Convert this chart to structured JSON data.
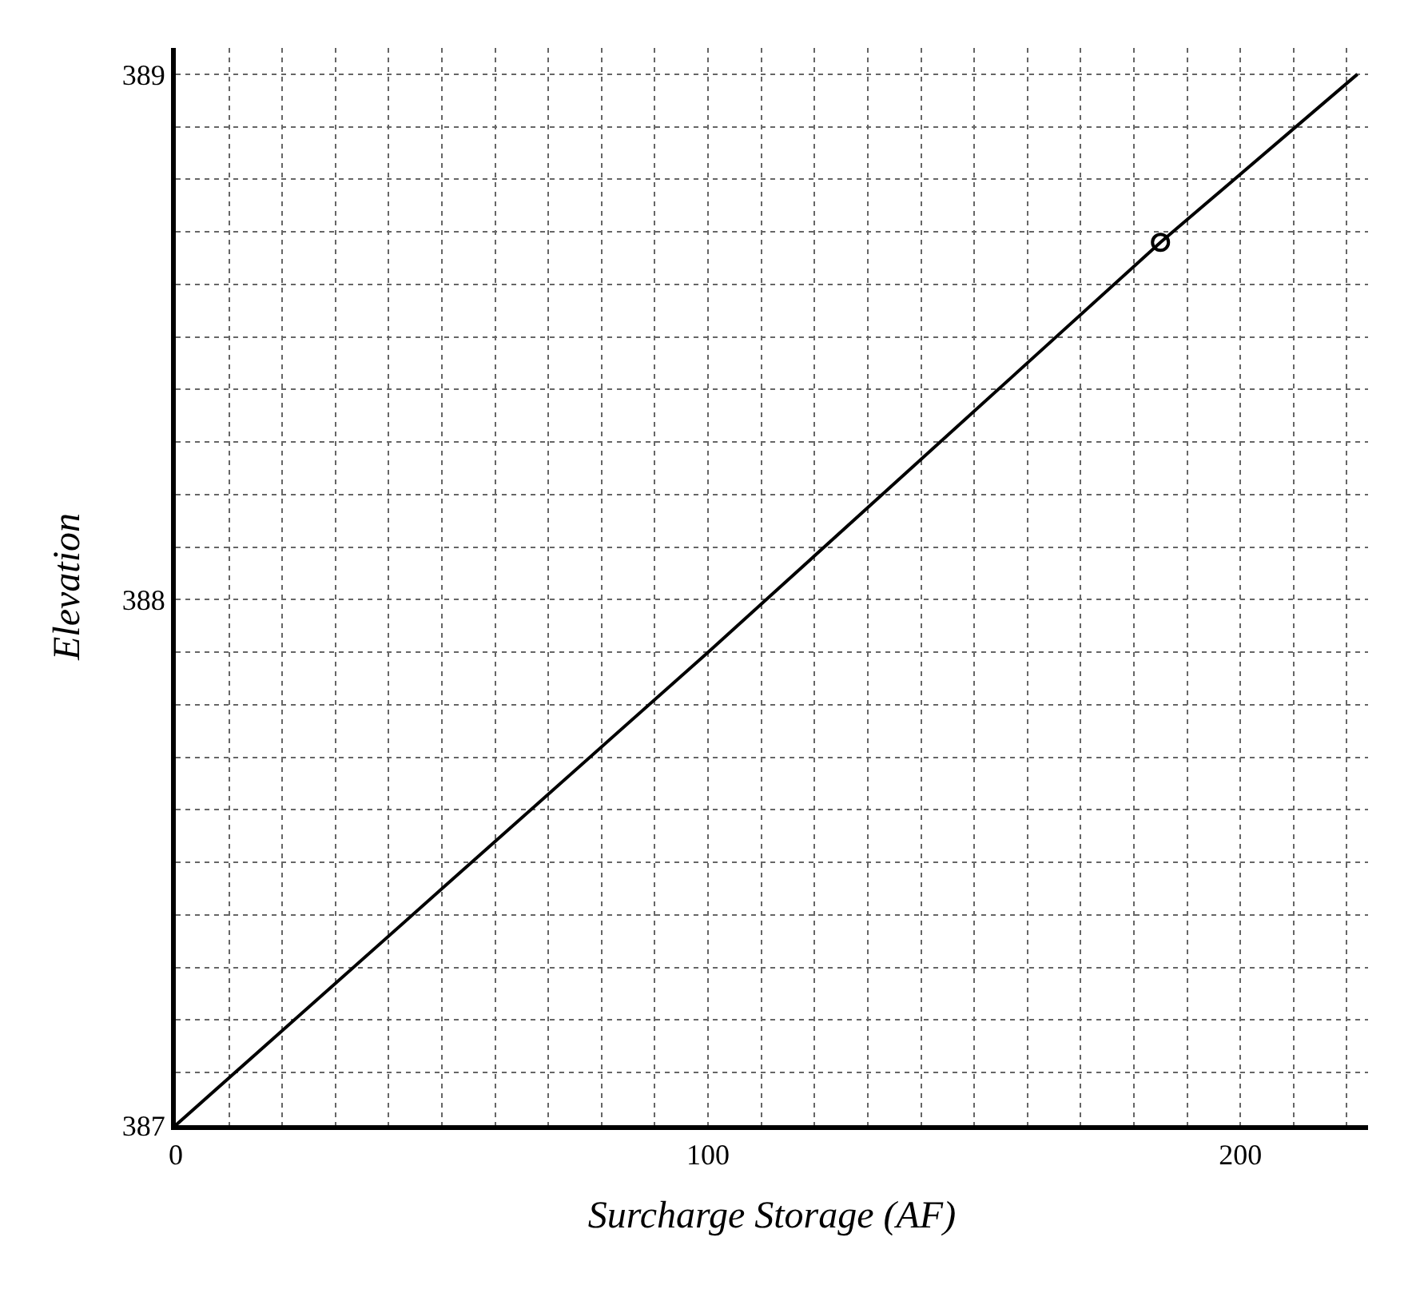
{
  "chart_data": {
    "type": "line",
    "xlabel": "Surcharge Storage (AF)",
    "ylabel": "Elevation",
    "series": [
      {
        "color": "#000000",
        "x": [
          0,
          50,
          100,
          185,
          222
        ],
        "values": [
          387,
          387.45,
          387.9,
          388.68,
          389
        ]
      },
      {
        "type": "scatter",
        "marker": "circle",
        "color": "#000000",
        "x": [
          185
        ],
        "values": [
          388.68
        ]
      }
    ],
    "xlim": [
      0,
      224
    ],
    "ylim": [
      387,
      389.05
    ],
    "xticks": [
      0,
      {
        "value": 10,
        "label": null
      },
      {
        "value": 20,
        "label": null
      },
      {
        "value": 30,
        "label": null
      },
      {
        "value": 40,
        "label": null
      },
      {
        "value": 50,
        "label": null
      },
      {
        "value": 60,
        "label": null
      },
      {
        "value": 70,
        "label": null
      },
      {
        "value": 80,
        "label": null
      },
      {
        "value": 90,
        "label": null
      },
      100,
      {
        "value": 110,
        "label": null
      },
      {
        "value": 120,
        "label": null
      },
      {
        "value": 130,
        "label": null
      },
      {
        "value": 140,
        "label": null
      },
      {
        "value": 150,
        "label": null
      },
      {
        "value": 160,
        "label": null
      },
      {
        "value": 170,
        "label": null
      },
      {
        "value": 180,
        "label": null
      },
      {
        "value": 190,
        "label": null
      },
      200,
      {
        "value": 210,
        "label": null
      },
      {
        "value": 220,
        "label": null
      }
    ],
    "yticks": [
      387,
      {
        "value": 387.1,
        "label": null
      },
      {
        "value": 387.2,
        "label": null
      },
      {
        "value": 387.3,
        "label": null
      },
      {
        "value": 387.4,
        "label": null
      },
      {
        "value": 387.5,
        "label": null
      },
      {
        "value": 387.6,
        "label": null
      },
      {
        "value": 387.7,
        "label": null
      },
      {
        "value": 387.8,
        "label": null
      },
      {
        "value": 387.9,
        "label": null
      },
      388,
      {
        "value": 388.1,
        "label": null
      },
      {
        "value": 388.2,
        "label": null
      },
      {
        "value": 388.3,
        "label": null
      },
      {
        "value": 388.4,
        "label": null
      },
      {
        "value": 388.5,
        "label": null
      },
      {
        "value": 388.6,
        "label": null
      },
      {
        "value": 388.7,
        "label": null
      },
      {
        "value": 388.8,
        "label": null
      },
      {
        "value": 388.9,
        "label": null
      },
      389
    ],
    "grid": true,
    "marker": "none",
    "line_style": "solid"
  }
}
